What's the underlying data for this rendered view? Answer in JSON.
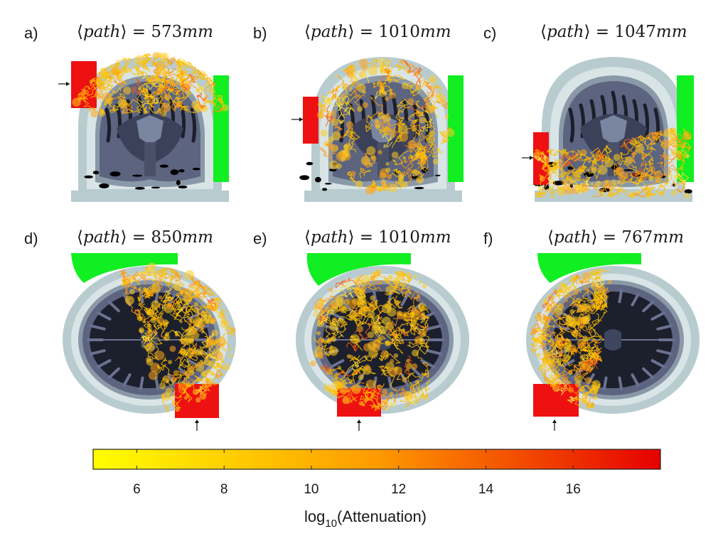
{
  "panels": [
    {
      "letter": "a)",
      "quantity": "path",
      "value": "573",
      "unit": "mm",
      "view": "coronal",
      "beam_region": "top"
    },
    {
      "letter": "b)",
      "quantity": "path",
      "value": "1010",
      "unit": "mm",
      "view": "coronal",
      "beam_region": "ring"
    },
    {
      "letter": "c)",
      "quantity": "path",
      "value": "1047",
      "unit": "mm",
      "view": "coronal",
      "beam_region": "bottom"
    },
    {
      "letter": "d)",
      "quantity": "path",
      "value": "850",
      "unit": "mm",
      "view": "axial",
      "beam_region": "right-half"
    },
    {
      "letter": "e)",
      "quantity": "path",
      "value": "1010",
      "unit": "mm",
      "view": "axial",
      "beam_region": "center"
    },
    {
      "letter": "f)",
      "quantity": "path",
      "value": "767",
      "unit": "mm",
      "view": "axial",
      "beam_region": "left-half"
    }
  ],
  "colorbar": {
    "label_prefix": "log",
    "label_sub": "10",
    "label_suffix": "(Attenuation)",
    "ticks": [
      "6",
      "8",
      "10",
      "12",
      "14",
      "16"
    ],
    "min": 5.0,
    "max": 18.0,
    "color_low": "#ffff00",
    "color_mid": "#ff9a00",
    "color_high": "#e60000"
  },
  "colors": {
    "skin": "#b8ccd0",
    "skull": "#d8e4e6",
    "csf": "#8a99a8",
    "grey_matter": "#5c6480",
    "white_matter": "#1c1f2c",
    "source_red": "#ee1111",
    "detector_green": "#11ee22",
    "track": "#ffb400"
  }
}
